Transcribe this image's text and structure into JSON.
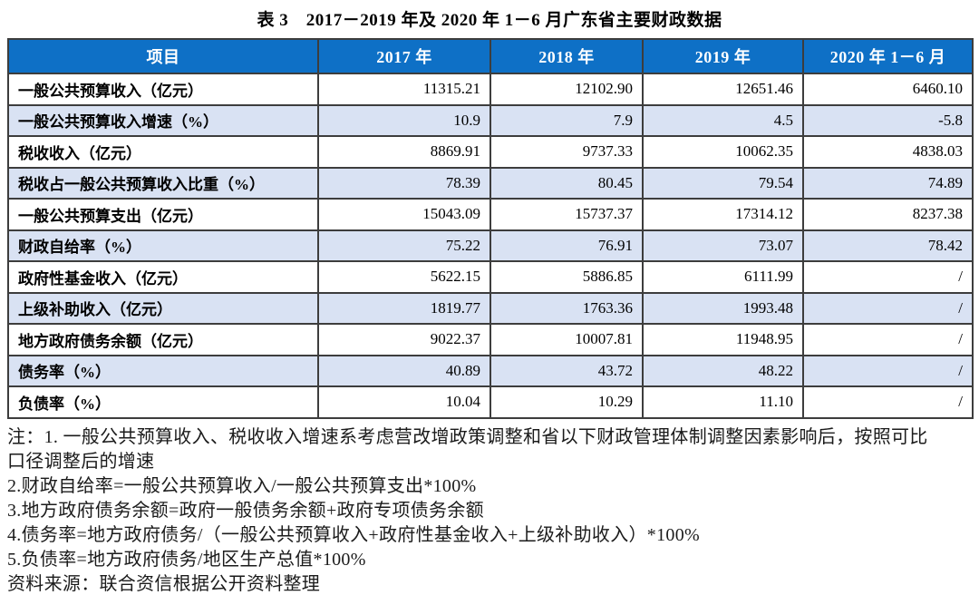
{
  "title": "表 3　2017－2019 年及 2020 年 1－6 月广东省主要财政数据",
  "table": {
    "headers": [
      "项目",
      "2017 年",
      "2018 年",
      "2019 年",
      "2020 年 1－6 月"
    ],
    "rows": [
      {
        "label": "一般公共预算收入（亿元）",
        "values": [
          "11315.21",
          "12102.90",
          "12651.46",
          "6460.10"
        ]
      },
      {
        "label": "一般公共预算收入增速（%）",
        "values": [
          "10.9",
          "7.9",
          "4.5",
          "-5.8"
        ]
      },
      {
        "label": "税收收入（亿元）",
        "values": [
          "8869.91",
          "9737.33",
          "10062.35",
          "4838.03"
        ]
      },
      {
        "label": "税收占一般公共预算收入比重（%）",
        "values": [
          "78.39",
          "80.45",
          "79.54",
          "74.89"
        ]
      },
      {
        "label": "一般公共预算支出（亿元）",
        "values": [
          "15043.09",
          "15737.37",
          "17314.12",
          "8237.38"
        ]
      },
      {
        "label": "财政自给率（%）",
        "values": [
          "75.22",
          "76.91",
          "73.07",
          "78.42"
        ]
      },
      {
        "label": "政府性基金收入（亿元）",
        "values": [
          "5622.15",
          "5886.85",
          "6111.99",
          "/"
        ]
      },
      {
        "label": "上级补助收入（亿元）",
        "values": [
          "1819.77",
          "1763.36",
          "1993.48",
          "/"
        ]
      },
      {
        "label": "地方政府债务余额（亿元）",
        "values": [
          "9022.37",
          "10007.81",
          "11948.95",
          "/"
        ]
      },
      {
        "label": "债务率（%）",
        "values": [
          "40.89",
          "43.72",
          "48.22",
          "/"
        ]
      },
      {
        "label": "负债率（%）",
        "values": [
          "10.04",
          "10.29",
          "11.10",
          "/"
        ]
      }
    ]
  },
  "notes": {
    "lines": [
      "注：1. 一般公共预算收入、税收收入增速系考虑营改增政策调整和省以下财政管理体制调整因素影响后，按照可比",
      "口径调整后的增速",
      "2.财政自给率=一般公共预算收入/一般公共预算支出*100%",
      "3.地方政府债务余额=政府一般债务余额+政府专项债务余额",
      "4.债务率=地方政府债务/（一般公共预算收入+政府性基金收入+上级补助收入）*100%",
      "5.负债率=地方政府债务/地区生产总值*100%",
      "资料来源：联合资信根据公开资料整理"
    ]
  },
  "colors": {
    "header_bg": "#0E70C6",
    "header_text": "#FFFFFF",
    "row_alt_bg": "#D9E2F3",
    "border": "#3D3D3D"
  }
}
